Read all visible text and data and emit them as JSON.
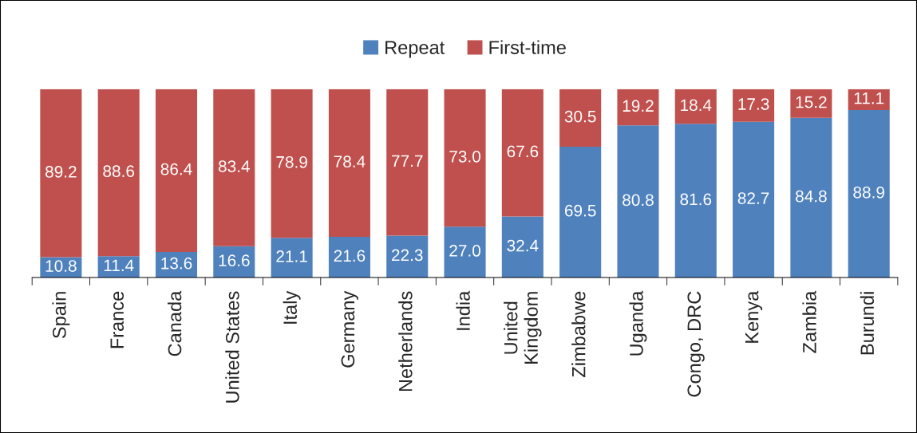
{
  "chart_data": {
    "type": "bar",
    "stacked": true,
    "legend": "top",
    "grid": false,
    "categories": [
      "Spain",
      "France",
      "Canada",
      "United States",
      "Italy",
      "Germany",
      "Netherlands",
      "India",
      "United\nKingdom",
      "Zimbabwe",
      "Uganda",
      "Congo, DRC",
      "Kenya",
      "Zambia",
      "Burundi"
    ],
    "series": [
      {
        "name": "Repeat",
        "color": "#4f81bd",
        "values": [
          10.8,
          11.4,
          13.6,
          16.6,
          21.1,
          21.6,
          22.3,
          27.0,
          32.4,
          69.5,
          80.8,
          81.6,
          82.7,
          84.8,
          88.9
        ],
        "value_labels": [
          "10.8",
          "11.4",
          "13.6",
          "16.6",
          "21.1",
          "21.6",
          "22.3",
          "27.0",
          "32.4",
          "69.5",
          "80.8",
          "81.6",
          "82.7",
          "84.8",
          "88.9"
        ]
      },
      {
        "name": "First-time",
        "color": "#c0504d",
        "values": [
          89.2,
          88.6,
          86.4,
          83.4,
          78.9,
          78.4,
          77.7,
          73.0,
          67.6,
          30.5,
          19.2,
          18.4,
          17.3,
          15.2,
          11.1
        ],
        "value_labels": [
          "89.2",
          "88.6",
          "86.4",
          "83.4",
          "78.9",
          "78.4",
          "77.7",
          "73.0",
          "67.6",
          "30.5",
          "19.2",
          "18.4",
          "17.3",
          "15.2",
          "11.1"
        ]
      }
    ]
  }
}
